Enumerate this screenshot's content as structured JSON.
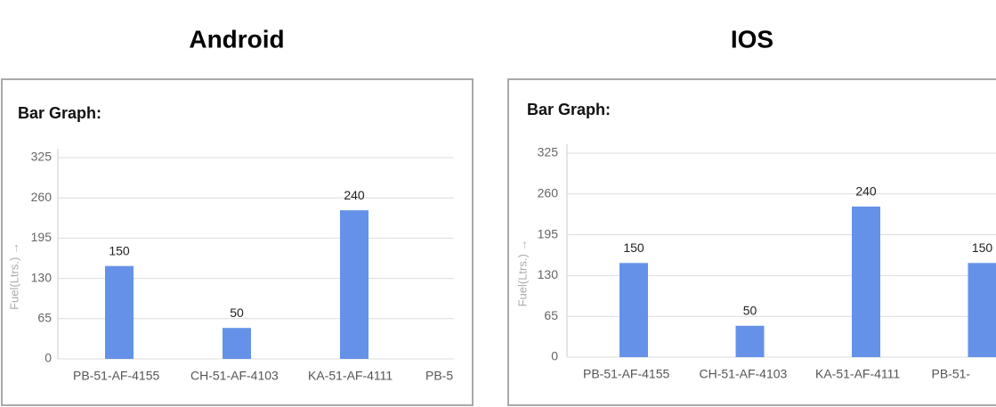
{
  "chart_data": [
    {
      "type": "bar",
      "heading": "Android",
      "title": "Bar Graph:",
      "y_label": "Fuel(Ltrs.) →",
      "categories": [
        "PB-51-AF-4155",
        "CH-51-AF-4103",
        "KA-51-AF-4111",
        "PB-5"
      ],
      "values": [
        150,
        50,
        240,
        null
      ],
      "color": "#6592e8",
      "ylim": [
        0,
        325
      ],
      "yticks": [
        0,
        65,
        130,
        195,
        260,
        325
      ],
      "grid": true
    },
    {
      "type": "bar",
      "heading": "IOS",
      "title": "Bar Graph:",
      "y_label": "Fuel(Ltrs.) →",
      "categories": [
        "PB-51-AF-4155",
        "CH-51-AF-4103",
        "KA-51-AF-4111",
        "PB-51-"
      ],
      "values": [
        150,
        50,
        240,
        150
      ],
      "color": "#6592e8",
      "ylim": [
        0,
        325
      ],
      "yticks": [
        0,
        65,
        130,
        195,
        260,
        325
      ],
      "grid": true
    }
  ]
}
